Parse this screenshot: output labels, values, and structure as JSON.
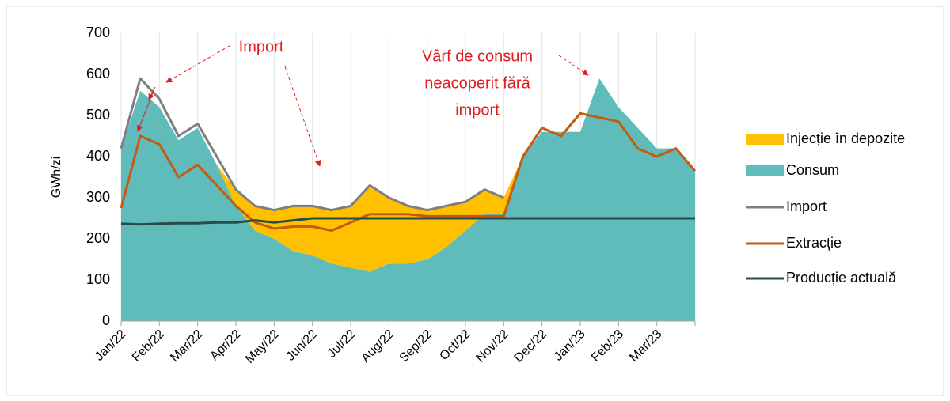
{
  "chart_data": {
    "type": "line",
    "ylabel": "GWh/zi",
    "xlim": [
      0,
      15
    ],
    "xticks": [
      {
        "value": 0,
        "label": "Jan/22"
      },
      {
        "value": 1,
        "label": "Feb/22"
      },
      {
        "value": 2,
        "label": "Mar/22"
      },
      {
        "value": 3,
        "label": "Apr/22"
      },
      {
        "value": 4,
        "label": "May/22"
      },
      {
        "value": 5,
        "label": "Jun/22"
      },
      {
        "value": 6,
        "label": "Jul/22"
      },
      {
        "value": 7,
        "label": "Aug/22"
      },
      {
        "value": 8,
        "label": "Sep/22"
      },
      {
        "value": 9,
        "label": "Oct/22"
      },
      {
        "value": 10,
        "label": "Nov/22"
      },
      {
        "value": 11,
        "label": "Dec/22"
      },
      {
        "value": 12,
        "label": "Jan/23"
      },
      {
        "value": 13,
        "label": "Feb/23"
      },
      {
        "value": 14,
        "label": "Mar/23"
      }
    ],
    "ylim": [
      0,
      700
    ],
    "yticks": [
      0,
      100,
      200,
      300,
      400,
      500,
      600,
      700
    ],
    "grid": "x",
    "legend": "right",
    "annotations": [
      {
        "lines": [
          "Import"
        ]
      },
      {
        "lines": [
          "Vârf de consum",
          "neacoperit fără",
          "import"
        ]
      }
    ],
    "x": [
      0,
      0.5,
      1,
      1.5,
      2,
      2.5,
      3,
      3.5,
      4,
      4.5,
      5,
      5.5,
      6,
      6.5,
      7,
      7.5,
      8,
      8.5,
      9,
      9.5,
      10,
      10.5,
      11,
      11.5,
      12,
      12.5,
      13,
      13.5,
      14,
      14.5,
      15
    ],
    "series": [
      {
        "name": "Injecție în depozite",
        "kind": "area",
        "color": "#ffc000",
        "values": [
          0,
          0,
          0,
          0,
          0,
          0,
          40,
          60,
          70,
          110,
          120,
          130,
          150,
          210,
          160,
          140,
          120,
          100,
          70,
          60,
          40,
          0,
          0,
          0,
          0,
          0,
          0,
          0,
          0,
          0,
          0
        ]
      },
      {
        "name": "Consum",
        "kind": "area",
        "color": "#5fbcba",
        "values": [
          420,
          560,
          520,
          440,
          470,
          380,
          280,
          220,
          200,
          170,
          160,
          140,
          130,
          120,
          140,
          140,
          150,
          180,
          220,
          260,
          260,
          400,
          460,
          460,
          460,
          590,
          520,
          470,
          420,
          420,
          360
        ]
      },
      {
        "name": "Import",
        "kind": "line",
        "color": "#7f7f7f",
        "values": [
          420,
          590,
          540,
          450,
          480,
          400,
          320,
          280,
          270,
          280,
          280,
          270,
          280,
          330,
          300,
          280,
          270,
          280,
          290,
          320,
          300,
          null,
          null,
          null,
          null,
          null,
          null,
          null,
          null,
          null,
          null
        ]
      },
      {
        "name": "Extracție",
        "kind": "line",
        "color": "#c55a11",
        "values": [
          275,
          450,
          430,
          350,
          380,
          330,
          280,
          240,
          225,
          230,
          230,
          220,
          240,
          260,
          260,
          260,
          255,
          255,
          255,
          255,
          255,
          400,
          470,
          450,
          505,
          495,
          485,
          420,
          400,
          420,
          365
        ]
      },
      {
        "name": "Producție actuală",
        "kind": "line",
        "color": "#264d4a",
        "values": [
          237,
          235,
          237,
          238,
          238,
          240,
          240,
          245,
          240,
          245,
          250,
          250,
          250,
          250,
          250,
          250,
          250,
          250,
          250,
          250,
          250,
          250,
          250,
          250,
          250,
          250,
          250,
          250,
          250,
          250,
          250
        ]
      }
    ]
  }
}
